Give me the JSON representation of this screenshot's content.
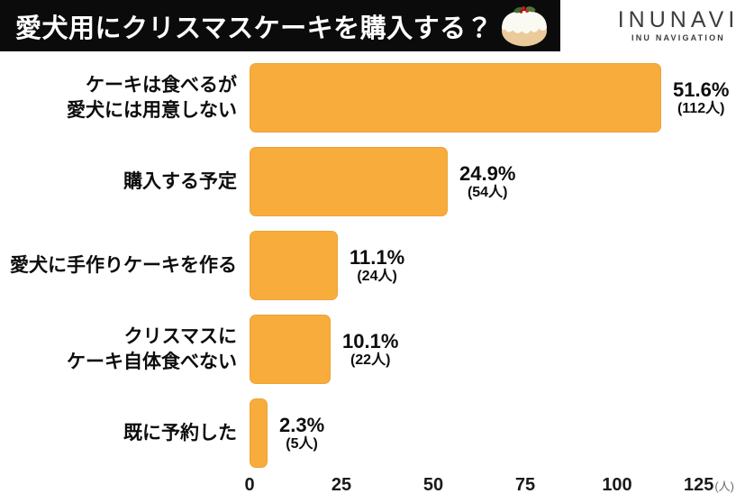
{
  "header": {
    "title": "愛犬用にクリスマスケーキを購入する？",
    "cake_icon": "christmas-pudding-icon",
    "logo": {
      "name": "INUNAVI",
      "subtitle": "INU NAVIGATION"
    }
  },
  "chart_data": {
    "type": "bar",
    "orientation": "horizontal",
    "title": "愛犬用にクリスマスケーキを購入する？",
    "xlim": [
      0,
      125
    ],
    "x_ticks": [
      0,
      25,
      50,
      75,
      100,
      125
    ],
    "x_unit": "(人)",
    "bar_color": "#F8AC3C",
    "grid": false,
    "legend": false,
    "categories": [
      "ケーキは食べるが 愛犬には用意しない",
      "購入する予定",
      "愛犬に手作りケーキを作る",
      "クリスマスに ケーキ自体食べない",
      "既に予約した"
    ],
    "values_people": [
      112,
      54,
      24,
      22,
      5
    ],
    "values_percent": [
      51.6,
      24.9,
      11.1,
      10.1,
      2.3
    ],
    "rows": [
      {
        "label_lines": [
          "ケーキは食べるが",
          "愛犬には用意しない"
        ],
        "percent": "51.6%",
        "count": "(112人)",
        "people": 112
      },
      {
        "label_lines": [
          "購入する予定"
        ],
        "percent": "24.9%",
        "count": "(54人)",
        "people": 54
      },
      {
        "label_lines": [
          "愛犬に手作りケーキを作る"
        ],
        "percent": "11.1%",
        "count": "(24人)",
        "people": 24
      },
      {
        "label_lines": [
          "クリスマスに",
          "ケーキ自体食べない"
        ],
        "percent": "10.1%",
        "count": "(22人)",
        "people": 22
      },
      {
        "label_lines": [
          "既に予約した"
        ],
        "percent": "2.3%",
        "count": "(5人)",
        "people": 5
      }
    ]
  }
}
